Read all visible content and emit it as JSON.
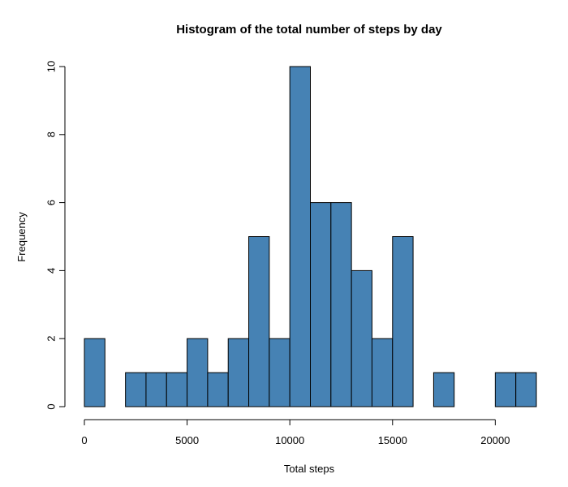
{
  "chart_data": {
    "type": "bar",
    "title": "Histogram of the total number of steps by day",
    "xlabel": "Total steps",
    "ylabel": "Frequency",
    "bin_edges": [
      0,
      1000,
      2000,
      3000,
      4000,
      5000,
      6000,
      7000,
      8000,
      9000,
      10000,
      11000,
      12000,
      13000,
      14000,
      15000,
      16000,
      17000,
      18000,
      19000,
      20000,
      21000,
      22000
    ],
    "values": [
      2,
      0,
      1,
      1,
      1,
      2,
      1,
      2,
      5,
      2,
      10,
      6,
      6,
      4,
      2,
      5,
      0,
      1,
      0,
      0,
      1,
      1
    ],
    "xlim": [
      0,
      22000
    ],
    "ylim": [
      0,
      10
    ],
    "x_ticks": [
      0,
      5000,
      10000,
      15000,
      20000
    ],
    "y_ticks": [
      0,
      2,
      4,
      6,
      8,
      10
    ],
    "bar_color": "#4682B4",
    "grid": false
  }
}
